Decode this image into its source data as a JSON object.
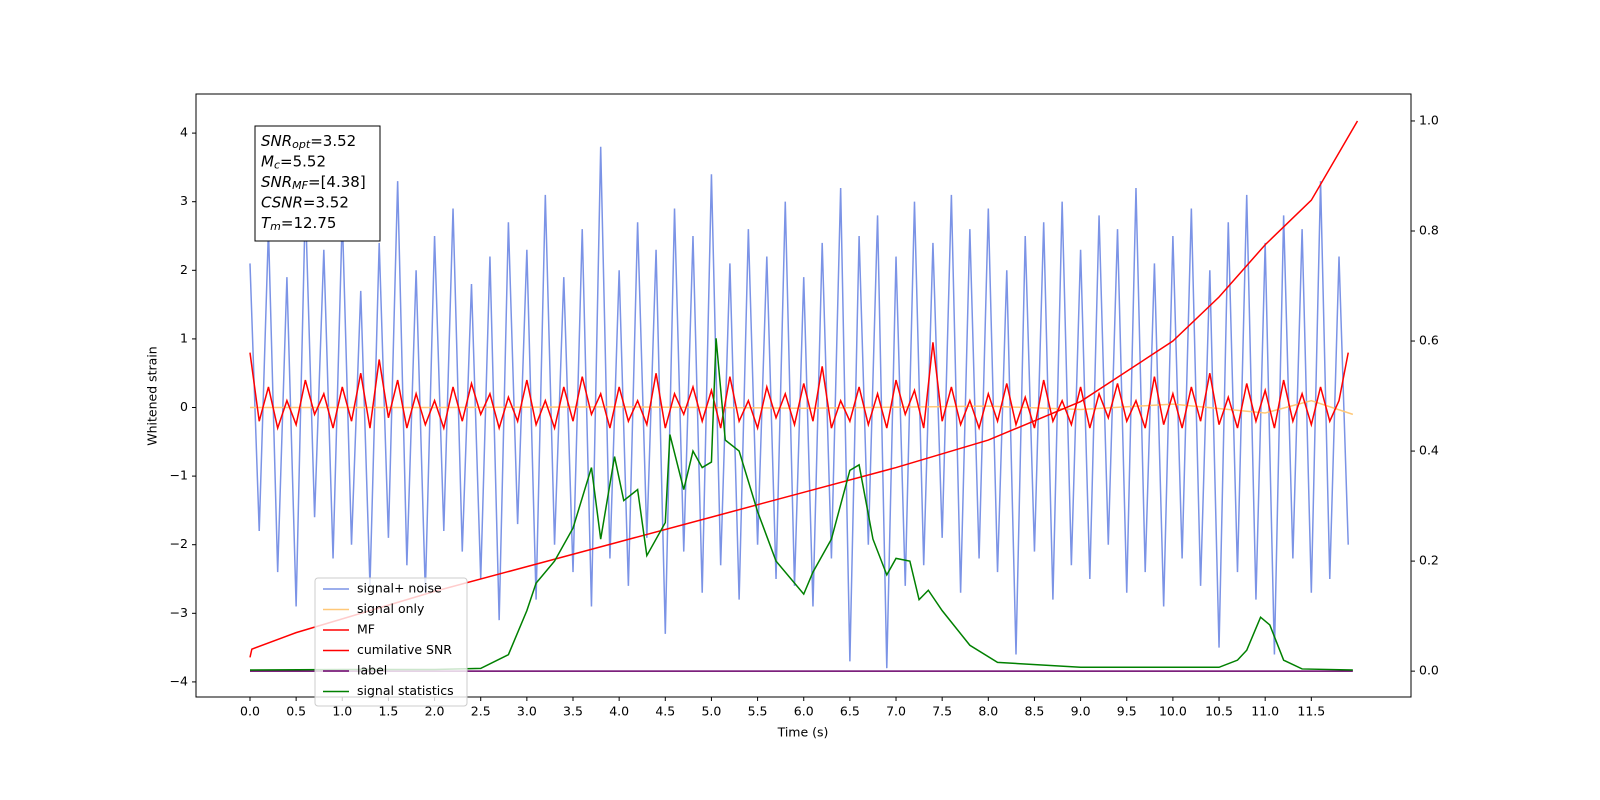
{
  "chart_data": {
    "type": "line",
    "xlabel": "Time (s)",
    "ylabel": "Whitened strain",
    "xlim": [
      -0.585,
      12.58
    ],
    "ylim": [
      -4.22,
      4.57
    ],
    "y2lim": [
      -0.047,
      1.049
    ],
    "xticks": [
      {
        "value": 0,
        "label": "0.0"
      },
      0.5,
      {
        "value": 1,
        "label": "1.0"
      },
      1.5,
      {
        "value": 2,
        "label": "2.0"
      },
      2.5,
      {
        "value": 3,
        "label": "3.0"
      },
      3.5,
      {
        "value": 4,
        "label": "4.0"
      },
      4.5,
      {
        "value": 5,
        "label": "5.0"
      },
      5.5,
      {
        "value": 6,
        "label": "6.0"
      },
      6.5,
      {
        "value": 7,
        "label": "7.0"
      },
      7.5,
      {
        "value": 8,
        "label": "8.0"
      },
      8.5,
      {
        "value": 9,
        "label": "9.0"
      },
      9.5,
      {
        "value": 10,
        "label": "10.0"
      },
      10.5,
      {
        "value": 11,
        "label": "11.0"
      },
      11.5
    ],
    "yticks": [
      {
        "value": -4,
        "label": "−4"
      },
      {
        "value": -3,
        "label": "−3"
      },
      {
        "value": -2,
        "label": "−2"
      },
      {
        "value": -1,
        "label": "−1"
      },
      0,
      1,
      2,
      3,
      4
    ],
    "y2ticks": [
      {
        "value": 0,
        "label": "0.0"
      },
      0.2,
      0.4,
      0.6,
      0.8,
      {
        "value": 1,
        "label": "1.0"
      }
    ],
    "legend": "lower left",
    "annotation": [
      {
        "main": "SNR",
        "sub": "opt",
        "rest": "=3.52"
      },
      {
        "main": "M",
        "sub": "c",
        "rest": "=5.52"
      },
      {
        "main": "SNR",
        "sub": "MF",
        "rest": "=[4.38]"
      },
      {
        "main": "CSNR",
        "rest": "=3.52"
      },
      {
        "main": "T",
        "sub": "m",
        "rest": "=12.75"
      }
    ],
    "x": [
      0,
      0.1,
      0.2,
      0.3,
      0.4,
      0.5,
      0.6,
      0.7,
      0.8,
      0.9,
      1,
      1.1,
      1.2,
      1.3,
      1.4,
      1.5,
      1.6,
      1.7,
      1.8,
      1.9,
      2,
      2.1,
      2.2,
      2.3,
      2.4,
      2.5,
      2.6,
      2.7,
      2.8,
      2.9,
      3,
      3.1,
      3.2,
      3.3,
      3.4,
      3.5,
      3.6,
      3.7,
      3.8,
      3.9,
      4,
      4.1,
      4.2,
      4.3,
      4.4,
      4.5,
      4.6,
      4.7,
      4.8,
      4.9,
      5,
      5.1,
      5.2,
      5.3,
      5.4,
      5.5,
      5.6,
      5.7,
      5.8,
      5.9,
      6,
      6.1,
      6.2,
      6.3,
      6.4,
      6.5,
      6.6,
      6.7,
      6.8,
      6.9,
      7,
      7.1,
      7.2,
      7.3,
      7.4,
      7.5,
      7.6,
      7.7,
      7.8,
      7.9,
      8,
      8.1,
      8.2,
      8.3,
      8.4,
      8.5,
      8.6,
      8.7,
      8.8,
      8.9,
      9,
      9.1,
      9.2,
      9.3,
      9.4,
      9.5,
      9.6,
      9.7,
      9.8,
      9.9,
      10,
      10.1,
      10.2,
      10.3,
      10.4,
      10.5,
      10.6,
      10.7,
      10.8,
      10.9,
      11,
      11.1,
      11.2,
      11.3,
      11.4,
      11.5,
      11.6,
      11.7,
      11.8,
      11.9
    ],
    "series": [
      {
        "name": "signal+ noise",
        "color": "#7b93e6",
        "values": [
          2.1,
          -1.8,
          2.6,
          -2.4,
          1.9,
          -2.9,
          3.0,
          -1.6,
          2.3,
          -2.2,
          2.8,
          -2.0,
          1.7,
          -2.6,
          2.4,
          -1.9,
          3.3,
          -2.3,
          2.0,
          -2.7,
          2.5,
          -1.8,
          2.9,
          -2.1,
          1.8,
          -2.5,
          2.2,
          -3.1,
          2.7,
          -1.7,
          2.3,
          -2.8,
          3.1,
          -2.0,
          1.9,
          -2.4,
          2.6,
          -2.9,
          3.8,
          -2.2,
          2.0,
          -2.6,
          2.7,
          -1.9,
          2.3,
          -3.3,
          2.9,
          -2.1,
          2.5,
          -2.7,
          3.4,
          -2.3,
          2.1,
          -2.8,
          2.6,
          -2.0,
          2.2,
          -2.5,
          3.0,
          -2.6,
          1.9,
          -2.9,
          2.4,
          -2.2,
          3.2,
          -3.7,
          2.5,
          -2.0,
          2.8,
          -3.8,
          2.2,
          -2.6,
          3.0,
          -2.3,
          2.4,
          -1.9,
          3.1,
          -2.7,
          2.6,
          -2.2,
          2.9,
          -2.4,
          2.0,
          -3.6,
          2.5,
          -2.1,
          2.7,
          -2.8,
          3.0,
          -2.3,
          2.3,
          -2.5,
          2.8,
          -2.0,
          2.6,
          -2.7,
          3.2,
          -2.4,
          2.1,
          -2.9,
          2.5,
          -2.2,
          2.9,
          -2.6,
          2.0,
          -3.5,
          2.7,
          -2.4,
          3.1,
          -2.8,
          2.4,
          -3.6,
          2.8,
          -2.2,
          2.6,
          -2.7,
          3.3,
          -2.5,
          2.2,
          -2.0
        ]
      },
      {
        "name": "signal only",
        "color": "#ffc878",
        "x": [
          0,
          2,
          4,
          6,
          8,
          9,
          10,
          11,
          11.5,
          11.95
        ],
        "values": [
          0,
          0,
          0.01,
          -0.01,
          0.02,
          -0.03,
          0.05,
          -0.08,
          0.1,
          -0.1
        ]
      },
      {
        "name": "MF",
        "color": "#ff0000",
        "values": [
          0.8,
          -0.2,
          0.3,
          -0.3,
          0.1,
          -0.25,
          0.4,
          -0.1,
          0.2,
          -0.3,
          0.3,
          -0.2,
          0.5,
          -0.3,
          0.7,
          -0.15,
          0.4,
          -0.3,
          0.2,
          -0.25,
          0.1,
          -0.3,
          0.3,
          -0.2,
          0.35,
          -0.1,
          0.2,
          -0.3,
          0.15,
          -0.2,
          0.4,
          -0.25,
          0.1,
          -0.3,
          0.3,
          -0.2,
          0.45,
          -0.1,
          0.2,
          -0.3,
          0.3,
          -0.2,
          0.1,
          -0.25,
          0.5,
          -0.3,
          0.2,
          -0.1,
          0.3,
          -0.2,
          0.25,
          -0.3,
          0.45,
          -0.2,
          0.1,
          -0.3,
          0.3,
          -0.15,
          0.2,
          -0.25,
          0.35,
          -0.2,
          0.6,
          -0.3,
          0.1,
          -0.2,
          0.3,
          -0.25,
          0.2,
          -0.3,
          0.4,
          -0.1,
          0.25,
          -0.3,
          0.95,
          -0.2,
          0.3,
          -0.25,
          0.1,
          -0.3,
          0.2,
          -0.2,
          0.35,
          -0.25,
          0.15,
          -0.3,
          0.4,
          -0.2,
          0.1,
          -0.25,
          0.3,
          -0.3,
          0.2,
          -0.15,
          0.35,
          -0.2,
          0.1,
          -0.3,
          0.45,
          -0.25,
          0.2,
          -0.3,
          0.3,
          -0.2,
          0.5,
          -0.25,
          0.15,
          -0.3,
          0.35,
          -0.2,
          0.25,
          -0.3,
          0.4,
          -0.2,
          0.2,
          -0.25,
          0.3,
          -0.2,
          0.1,
          0.8
        ]
      },
      {
        "name": "cumilative SNR",
        "color": "#ff0000",
        "axis": "y2",
        "x": [
          0,
          0.02,
          0.5,
          1,
          1.5,
          2,
          3,
          4,
          5,
          6,
          7,
          8,
          9,
          10,
          10.5,
          11,
          11.5,
          12
        ],
        "values": [
          0.025,
          0.04,
          0.07,
          0.095,
          0.12,
          0.145,
          0.19,
          0.235,
          0.28,
          0.325,
          0.37,
          0.42,
          0.49,
          0.6,
          0.68,
          0.775,
          0.856,
          1.0
        ]
      },
      {
        "name": "label",
        "color": "#6a006a",
        "axis": "y2",
        "x": [
          0,
          11.95
        ],
        "values": [
          0,
          0
        ]
      },
      {
        "name": "signal statistics",
        "color": "#008000",
        "axis": "y2",
        "x": [
          0,
          1,
          2,
          2.5,
          2.8,
          3.0,
          3.1,
          3.3,
          3.5,
          3.7,
          3.8,
          3.95,
          4.05,
          4.2,
          4.3,
          4.5,
          4.55,
          4.7,
          4.8,
          4.9,
          5.0,
          5.05,
          5.15,
          5.3,
          5.5,
          5.7,
          6.0,
          6.1,
          6.3,
          6.5,
          6.6,
          6.75,
          6.9,
          7.0,
          7.15,
          7.25,
          7.35,
          7.5,
          7.8,
          8.1,
          9.0,
          10.5,
          10.7,
          10.8,
          10.95,
          11.05,
          11.2,
          11.4,
          11.95
        ],
        "values": [
          0.002,
          0.003,
          0.003,
          0.005,
          0.03,
          0.11,
          0.16,
          0.2,
          0.26,
          0.37,
          0.24,
          0.39,
          0.31,
          0.33,
          0.21,
          0.27,
          0.43,
          0.33,
          0.4,
          0.37,
          0.38,
          0.605,
          0.42,
          0.4,
          0.29,
          0.2,
          0.14,
          0.18,
          0.24,
          0.365,
          0.375,
          0.24,
          0.175,
          0.205,
          0.2,
          0.13,
          0.147,
          0.11,
          0.047,
          0.016,
          0.007,
          0.007,
          0.02,
          0.038,
          0.098,
          0.084,
          0.02,
          0.004,
          0.002
        ]
      }
    ]
  }
}
